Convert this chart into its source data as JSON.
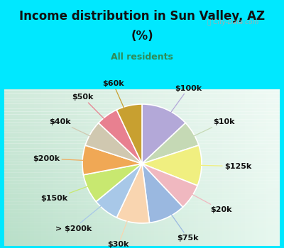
{
  "title_line1": "Income distribution in Sun Valley, AZ",
  "title_line2": "(%)",
  "subtitle": "All residents",
  "labels": [
    "$100k",
    "$10k",
    "$125k",
    "$20k",
    "$75k",
    "$30k",
    "> $200k",
    "$150k",
    "$200k",
    "$40k",
    "$50k",
    "$60k"
  ],
  "sizes": [
    13,
    7,
    11,
    7,
    10,
    9,
    7,
    8,
    8,
    7,
    6,
    7
  ],
  "colors": [
    "#b3a8d8",
    "#c5d9b5",
    "#f0ef80",
    "#f0b8c0",
    "#9ab8e0",
    "#f9d5b0",
    "#a8c8e8",
    "#c8e870",
    "#f0a855",
    "#d0c8b0",
    "#e88090",
    "#c8a030"
  ],
  "bg_cyan": "#00e8ff",
  "bg_chart_left": "#b8dfc8",
  "bg_chart_right": "#e8f5f0",
  "title_color": "#111111",
  "subtitle_color": "#2e8b57",
  "watermark": "City-Data.com",
  "startangle": 90,
  "label_r": 1.38,
  "label_fontsize": 8,
  "label_color": "#111111"
}
